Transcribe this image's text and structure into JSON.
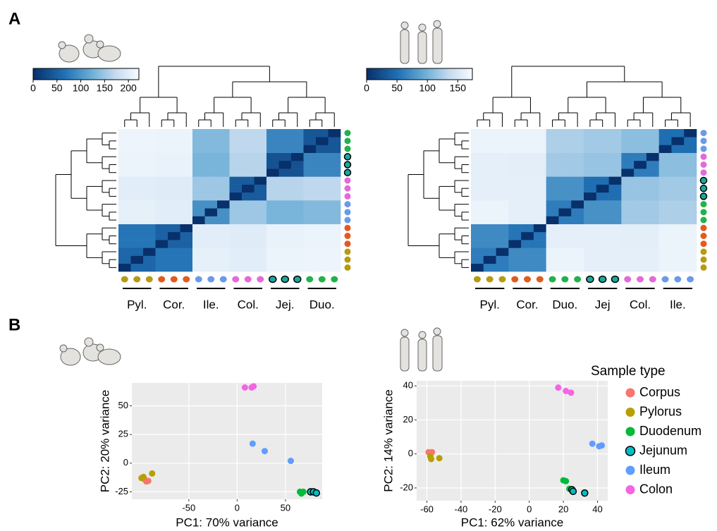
{
  "panel_labels": [
    "A",
    "B"
  ],
  "chart_data": [
    {
      "type": "heatmap",
      "groups": [
        "Pyl.",
        "Cor.",
        "Ile.",
        "Col.",
        "Jej.",
        "Duo."
      ],
      "group_colors": [
        "#b59b12",
        "#e35a1e",
        "#6a9be8",
        "#e36ad8",
        "#1aa99c",
        "#22b24c"
      ],
      "outlined": [
        false,
        false,
        false,
        false,
        true,
        false
      ],
      "colorbar": {
        "lim": [
          0,
          222
        ],
        "ticks": [
          0,
          50,
          100,
          150,
          200
        ]
      },
      "matrix": [
        [
          0,
          55,
          55,
          70,
          70,
          70,
          205,
          205,
          205,
          200,
          200,
          200,
          210,
          210,
          210,
          212,
          212,
          212
        ],
        [
          55,
          0,
          55,
          70,
          70,
          70,
          205,
          205,
          205,
          200,
          200,
          200,
          210,
          210,
          210,
          212,
          212,
          212
        ],
        [
          55,
          55,
          0,
          70,
          70,
          70,
          205,
          205,
          205,
          200,
          200,
          200,
          210,
          210,
          210,
          212,
          212,
          212
        ],
        [
          70,
          70,
          70,
          0,
          50,
          50,
          200,
          200,
          200,
          198,
          198,
          198,
          208,
          208,
          208,
          210,
          210,
          210
        ],
        [
          70,
          70,
          70,
          50,
          0,
          50,
          200,
          200,
          200,
          198,
          198,
          198,
          208,
          208,
          208,
          210,
          210,
          210
        ],
        [
          70,
          70,
          70,
          50,
          50,
          0,
          200,
          200,
          200,
          198,
          198,
          198,
          208,
          208,
          208,
          210,
          210,
          210
        ],
        [
          205,
          205,
          205,
          200,
          200,
          200,
          0,
          95,
          95,
          150,
          150,
          150,
          130,
          130,
          130,
          135,
          135,
          135
        ],
        [
          205,
          205,
          205,
          200,
          200,
          200,
          95,
          0,
          95,
          150,
          150,
          150,
          130,
          130,
          130,
          135,
          135,
          135
        ],
        [
          205,
          205,
          205,
          200,
          200,
          200,
          95,
          95,
          0,
          150,
          150,
          150,
          130,
          130,
          130,
          135,
          135,
          135
        ],
        [
          200,
          200,
          200,
          198,
          198,
          198,
          150,
          150,
          150,
          0,
          45,
          45,
          165,
          165,
          165,
          170,
          170,
          170
        ],
        [
          200,
          200,
          200,
          198,
          198,
          198,
          150,
          150,
          150,
          45,
          0,
          45,
          165,
          165,
          165,
          170,
          170,
          170
        ],
        [
          200,
          200,
          200,
          198,
          198,
          198,
          150,
          150,
          150,
          45,
          45,
          0,
          165,
          165,
          165,
          170,
          170,
          170
        ],
        [
          210,
          210,
          210,
          208,
          208,
          208,
          130,
          130,
          130,
          165,
          165,
          165,
          0,
          35,
          35,
          85,
          85,
          85
        ],
        [
          210,
          210,
          210,
          208,
          208,
          208,
          130,
          130,
          130,
          165,
          165,
          165,
          35,
          0,
          35,
          85,
          85,
          85
        ],
        [
          210,
          210,
          210,
          208,
          208,
          208,
          130,
          130,
          130,
          165,
          165,
          165,
          35,
          35,
          0,
          85,
          85,
          85
        ],
        [
          212,
          212,
          212,
          210,
          210,
          210,
          135,
          135,
          135,
          170,
          170,
          170,
          85,
          85,
          85,
          0,
          40,
          40
        ],
        [
          212,
          212,
          212,
          210,
          210,
          210,
          135,
          135,
          135,
          170,
          170,
          170,
          85,
          85,
          85,
          40,
          0,
          40
        ],
        [
          212,
          212,
          212,
          210,
          210,
          210,
          135,
          135,
          135,
          170,
          170,
          170,
          85,
          85,
          85,
          40,
          40,
          0
        ]
      ]
    },
    {
      "type": "heatmap",
      "groups": [
        "Pyl.",
        "Cor.",
        "Duo.",
        "Jej",
        "Col.",
        "Ile."
      ],
      "group_colors": [
        "#b59b12",
        "#e35a1e",
        "#22b24c",
        "#1aa99c",
        "#e36ad8",
        "#6a9be8"
      ],
      "outlined": [
        false,
        false,
        false,
        true,
        false,
        false
      ],
      "colorbar": {
        "lim": [
          0,
          174
        ],
        "ticks": [
          0,
          50,
          100,
          150
        ]
      },
      "matrix": [
        [
          0,
          60,
          60,
          70,
          70,
          70,
          165,
          165,
          165,
          160,
          160,
          160,
          160,
          160,
          160,
          165,
          165,
          165
        ],
        [
          60,
          0,
          60,
          70,
          70,
          70,
          165,
          165,
          165,
          160,
          160,
          160,
          160,
          160,
          160,
          165,
          165,
          165
        ],
        [
          60,
          60,
          0,
          70,
          70,
          70,
          165,
          165,
          165,
          160,
          160,
          160,
          160,
          160,
          160,
          165,
          165,
          165
        ],
        [
          70,
          70,
          70,
          0,
          55,
          55,
          160,
          160,
          160,
          160,
          160,
          160,
          158,
          158,
          158,
          165,
          165,
          165
        ],
        [
          70,
          70,
          70,
          55,
          0,
          55,
          160,
          160,
          160,
          160,
          160,
          160,
          158,
          158,
          158,
          165,
          165,
          165
        ],
        [
          70,
          70,
          70,
          55,
          55,
          0,
          160,
          160,
          160,
          160,
          160,
          160,
          158,
          158,
          158,
          165,
          165,
          165
        ],
        [
          165,
          165,
          165,
          160,
          160,
          160,
          0,
          60,
          60,
          75,
          75,
          75,
          120,
          120,
          120,
          125,
          125,
          125
        ],
        [
          165,
          165,
          165,
          160,
          160,
          160,
          60,
          0,
          60,
          75,
          75,
          75,
          120,
          120,
          120,
          125,
          125,
          125
        ],
        [
          165,
          165,
          165,
          160,
          160,
          160,
          60,
          60,
          0,
          75,
          75,
          75,
          120,
          120,
          120,
          125,
          125,
          125
        ],
        [
          160,
          160,
          160,
          160,
          160,
          160,
          75,
          75,
          75,
          0,
          50,
          50,
          115,
          115,
          115,
          120,
          120,
          120
        ],
        [
          160,
          160,
          160,
          160,
          160,
          160,
          75,
          75,
          75,
          50,
          0,
          50,
          115,
          115,
          115,
          120,
          120,
          120
        ],
        [
          160,
          160,
          160,
          160,
          160,
          160,
          75,
          75,
          75,
          50,
          50,
          0,
          115,
          115,
          115,
          120,
          120,
          120
        ],
        [
          160,
          160,
          160,
          158,
          158,
          158,
          120,
          120,
          120,
          115,
          115,
          115,
          0,
          60,
          60,
          110,
          110,
          110
        ],
        [
          160,
          160,
          160,
          158,
          158,
          158,
          120,
          120,
          120,
          115,
          115,
          115,
          60,
          0,
          60,
          110,
          110,
          110
        ],
        [
          160,
          160,
          160,
          158,
          158,
          158,
          120,
          120,
          120,
          115,
          115,
          115,
          60,
          60,
          0,
          110,
          110,
          110
        ],
        [
          165,
          165,
          165,
          165,
          165,
          165,
          125,
          125,
          125,
          120,
          120,
          120,
          110,
          110,
          110,
          0,
          50,
          50
        ],
        [
          165,
          165,
          165,
          165,
          165,
          165,
          125,
          125,
          125,
          120,
          120,
          120,
          110,
          110,
          110,
          50,
          0,
          50
        ],
        [
          165,
          165,
          165,
          165,
          165,
          165,
          125,
          125,
          125,
          120,
          120,
          120,
          110,
          110,
          110,
          50,
          50,
          0
        ]
      ]
    },
    {
      "type": "scatter",
      "x_label": "PC1: 70% variance",
      "y_label": "PC2: 20% variance",
      "xlim": [
        -109,
        88
      ],
      "ylim": [
        -31.5,
        70
      ],
      "xticks": [
        -50,
        0,
        50
      ],
      "yticks": [
        -25,
        0,
        25,
        50
      ],
      "grid": true,
      "series": [
        {
          "color": "#f8766d",
          "outline": false,
          "x": [
            -94,
            -92,
            -96
          ],
          "y": [
            -16,
            -15.5,
            -14
          ]
        },
        {
          "color": "#b79f00",
          "outline": false,
          "x": [
            -97,
            -88,
            -99
          ],
          "y": [
            -12,
            -9,
            -13
          ]
        },
        {
          "color": "#00ba38",
          "outline": false,
          "x": [
            65,
            66.5,
            68.5
          ],
          "y": [
            -25,
            -26.5,
            -25
          ]
        },
        {
          "color": "#00bfc4",
          "outline": true,
          "x": [
            76,
            79,
            82
          ],
          "y": [
            -25,
            -25,
            -26
          ]
        },
        {
          "color": "#619cff",
          "outline": false,
          "x": [
            16,
            28.5,
            55.5
          ],
          "y": [
            17,
            10.5,
            2
          ]
        },
        {
          "color": "#f564e3",
          "outline": false,
          "x": [
            8,
            15,
            17
          ],
          "y": [
            66,
            66,
            67
          ]
        }
      ]
    },
    {
      "type": "scatter",
      "x_label": "PC1: 62% variance",
      "y_label": "PC2: 14% variance",
      "xlim": [
        -66,
        46
      ],
      "ylim": [
        -27.5,
        43
      ],
      "xticks": [
        -60,
        -40,
        -20,
        0,
        20,
        40
      ],
      "yticks": [
        -20,
        0,
        20,
        40
      ],
      "grid": true,
      "legend": {
        "title": "Sample type",
        "position": "right"
      },
      "series": [
        {
          "name": "Corpus",
          "color": "#f8766d",
          "outline": false,
          "x": [
            -59,
            -57,
            -58
          ],
          "y": [
            1,
            1,
            0.5
          ]
        },
        {
          "name": "Pylorus",
          "color": "#b79f00",
          "outline": false,
          "x": [
            -58,
            -57.5,
            -52.7
          ],
          "y": [
            -1.5,
            -3,
            -2.5
          ]
        },
        {
          "name": "Duodenum",
          "color": "#00ba38",
          "outline": false,
          "x": [
            20,
            21.5,
            23.5
          ],
          "y": [
            -15.5,
            -16,
            -20.5
          ]
        },
        {
          "name": "Jejunum",
          "color": "#00bfc4",
          "outline": true,
          "x": [
            25,
            25.7,
            32.5
          ],
          "y": [
            -21,
            -22,
            -23
          ]
        },
        {
          "name": "Ileum",
          "color": "#619cff",
          "outline": false,
          "x": [
            37,
            41,
            42.5
          ],
          "y": [
            6,
            4.5,
            5
          ]
        },
        {
          "name": "Colon",
          "color": "#f564e3",
          "outline": false,
          "x": [
            17,
            21.5,
            24.5
          ],
          "y": [
            39,
            37,
            36
          ]
        }
      ]
    }
  ]
}
